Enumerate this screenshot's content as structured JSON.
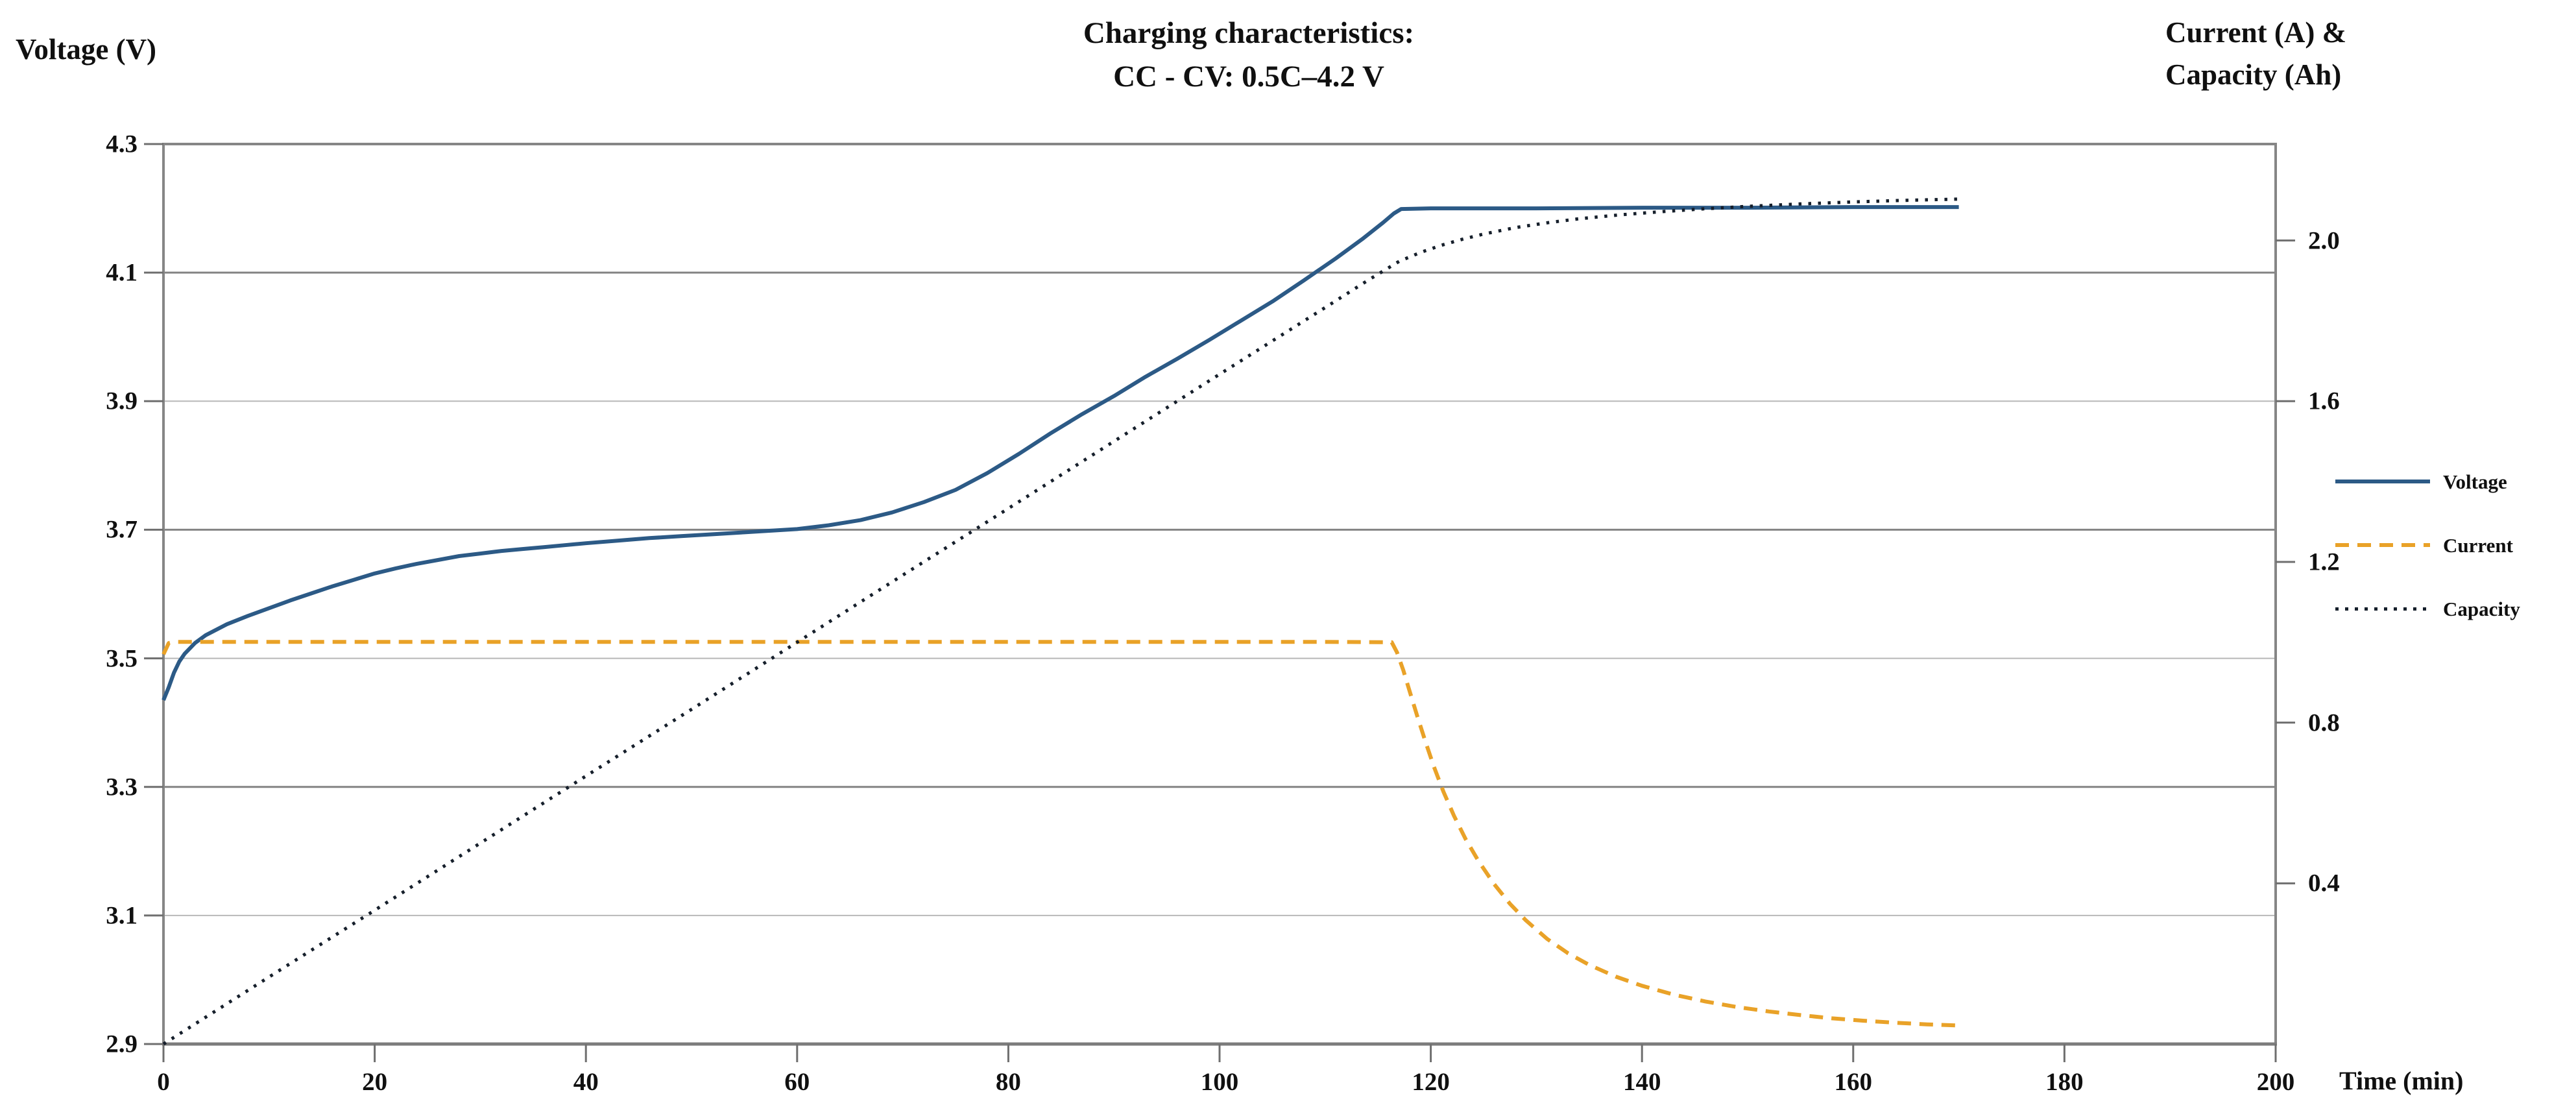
{
  "title": {
    "line1": "Charging characteristics:",
    "line2": "CC - CV: 0.5C–4.2 V"
  },
  "left_axis": {
    "title": "Voltage (V)",
    "min": 2.9,
    "max": 4.3,
    "tick_values": [
      4.3,
      4.1,
      3.9,
      3.7,
      3.5,
      3.3,
      3.1,
      2.9
    ],
    "tick_labels": [
      "4.3",
      "4.1",
      "3.9",
      "3.7",
      "3.5",
      "3.3",
      "3.1",
      "2.9"
    ]
  },
  "right_axis": {
    "title_line1": "Current (A) &",
    "title_line2": "Capacity (Ah)",
    "min": 0,
    "max": 2.24,
    "tick_values": [
      2.0,
      1.6,
      1.2,
      0.8,
      0.4
    ],
    "tick_labels": [
      "2.0",
      "1.6",
      "1.2",
      "0.8",
      "0.4"
    ]
  },
  "x_axis": {
    "title": "Time (min)",
    "min": 0,
    "max": 200,
    "tick_values": [
      0,
      20,
      40,
      60,
      80,
      100,
      120,
      140,
      160,
      180,
      200
    ],
    "tick_labels": [
      "0",
      "20",
      "40",
      "60",
      "80",
      "100",
      "120",
      "140",
      "160",
      "180",
      "200"
    ]
  },
  "legend": [
    {
      "label": "Voltage",
      "style": "solid",
      "color": "#2c5a86"
    },
    {
      "label": "Current",
      "style": "dashed",
      "color": "#e9a228"
    },
    {
      "label": "Capacity",
      "style": "dotted",
      "color": "#161f2b"
    }
  ],
  "colors": {
    "voltage_line": "#2c5a86",
    "current_line": "#e9a228",
    "capacity_line": "#161f2b",
    "axis": "#868686",
    "grid_dark": "#848484",
    "grid_light": "#b8b8b8",
    "text": "#101010"
  },
  "chart_data": {
    "type": "line",
    "title": "Charging characteristics: CC - CV: 0.5C–4.2 V",
    "xlabel": "Time (min)",
    "ylabel_left": "Voltage (V)",
    "ylabel_right": "Current (A) & Capacity (Ah)",
    "xlim": [
      0,
      200
    ],
    "ylim_left": [
      2.9,
      4.3
    ],
    "ylim_right": [
      0,
      2.24
    ],
    "grid": "horizontal",
    "legend_position": "right",
    "series": [
      {
        "name": "Voltage",
        "axis": "left",
        "units": "V",
        "style": "solid",
        "color": "#2c5a86",
        "points": [
          [
            0,
            3.435
          ],
          [
            0.5,
            3.455
          ],
          [
            1,
            3.478
          ],
          [
            1.5,
            3.495
          ],
          [
            2,
            3.507
          ],
          [
            3,
            3.524
          ],
          [
            4,
            3.536
          ],
          [
            6,
            3.553
          ],
          [
            8,
            3.566
          ],
          [
            10,
            3.578
          ],
          [
            12,
            3.59
          ],
          [
            14,
            3.601
          ],
          [
            16,
            3.612
          ],
          [
            18,
            3.622
          ],
          [
            20,
            3.632
          ],
          [
            22,
            3.64
          ],
          [
            24,
            3.647
          ],
          [
            26,
            3.653
          ],
          [
            28,
            3.659
          ],
          [
            30,
            3.663
          ],
          [
            32,
            3.667
          ],
          [
            34,
            3.67
          ],
          [
            36,
            3.673
          ],
          [
            38,
            3.676
          ],
          [
            40,
            3.679
          ],
          [
            43,
            3.683
          ],
          [
            46,
            3.687
          ],
          [
            49,
            3.69
          ],
          [
            52,
            3.693
          ],
          [
            55,
            3.696
          ],
          [
            58,
            3.699
          ],
          [
            60,
            3.701
          ],
          [
            63,
            3.707
          ],
          [
            66,
            3.715
          ],
          [
            69,
            3.727
          ],
          [
            72,
            3.743
          ],
          [
            75,
            3.762
          ],
          [
            78,
            3.788
          ],
          [
            81,
            3.818
          ],
          [
            84,
            3.85
          ],
          [
            87,
            3.88
          ],
          [
            90,
            3.908
          ],
          [
            93,
            3.938
          ],
          [
            96,
            3.966
          ],
          [
            99,
            3.995
          ],
          [
            102,
            4.025
          ],
          [
            105,
            4.055
          ],
          [
            108,
            4.088
          ],
          [
            111,
            4.122
          ],
          [
            113.5,
            4.152
          ],
          [
            115.5,
            4.178
          ],
          [
            116.5,
            4.192
          ],
          [
            117.2,
            4.199
          ],
          [
            120,
            4.2
          ],
          [
            130,
            4.2
          ],
          [
            140,
            4.201
          ],
          [
            150,
            4.201
          ],
          [
            160,
            4.202
          ],
          [
            170,
            4.202
          ]
        ]
      },
      {
        "name": "Current",
        "axis": "right",
        "units": "A",
        "style": "dashed",
        "color": "#e9a228",
        "points": [
          [
            0,
            0.97
          ],
          [
            0.5,
            0.998
          ],
          [
            1,
            1.001
          ],
          [
            10,
            1.001
          ],
          [
            20,
            1.001
          ],
          [
            30,
            1.001
          ],
          [
            40,
            1.001
          ],
          [
            50,
            1.001
          ],
          [
            60,
            1.001
          ],
          [
            70,
            1.001
          ],
          [
            80,
            1.001
          ],
          [
            90,
            1.001
          ],
          [
            100,
            1.001
          ],
          [
            110,
            1.001
          ],
          [
            116.3,
            1.0
          ],
          [
            116.8,
            0.975
          ],
          [
            117.4,
            0.93
          ],
          [
            118,
            0.878
          ],
          [
            118.7,
            0.818
          ],
          [
            119.5,
            0.752
          ],
          [
            120.3,
            0.69
          ],
          [
            121.2,
            0.628
          ],
          [
            122.2,
            0.568
          ],
          [
            123.3,
            0.51
          ],
          [
            124.5,
            0.456
          ],
          [
            126,
            0.398
          ],
          [
            127.5,
            0.349
          ],
          [
            129,
            0.308
          ],
          [
            131,
            0.262
          ],
          [
            133,
            0.226
          ],
          [
            135,
            0.197
          ],
          [
            137.5,
            0.168
          ],
          [
            140,
            0.145
          ],
          [
            143,
            0.123
          ],
          [
            146,
            0.106
          ],
          [
            149,
            0.092
          ],
          [
            152,
            0.081
          ],
          [
            155,
            0.072
          ],
          [
            158,
            0.064
          ],
          [
            161,
            0.058
          ],
          [
            164,
            0.053
          ],
          [
            167,
            0.049
          ],
          [
            170,
            0.046
          ]
        ]
      },
      {
        "name": "Capacity",
        "axis": "right",
        "units": "Ah",
        "style": "dotted",
        "color": "#161f2b",
        "points": [
          [
            0,
            0
          ],
          [
            10,
            0.167
          ],
          [
            20,
            0.333
          ],
          [
            30,
            0.5
          ],
          [
            40,
            0.667
          ],
          [
            50,
            0.833
          ],
          [
            60,
            1.0
          ],
          [
            70,
            1.167
          ],
          [
            80,
            1.333
          ],
          [
            90,
            1.5
          ],
          [
            100,
            1.667
          ],
          [
            105,
            1.75
          ],
          [
            110,
            1.833
          ],
          [
            114,
            1.9
          ],
          [
            117,
            1.948
          ],
          [
            119,
            1.97
          ],
          [
            121,
            1.988
          ],
          [
            123,
            2.003
          ],
          [
            125,
            2.016
          ],
          [
            128,
            2.032
          ],
          [
            131,
            2.044
          ],
          [
            134,
            2.054
          ],
          [
            138,
            2.064
          ],
          [
            142,
            2.072
          ],
          [
            146,
            2.079
          ],
          [
            150,
            2.085
          ],
          [
            155,
            2.091
          ],
          [
            160,
            2.096
          ],
          [
            165,
            2.1
          ],
          [
            170,
            2.103
          ]
        ]
      }
    ]
  }
}
